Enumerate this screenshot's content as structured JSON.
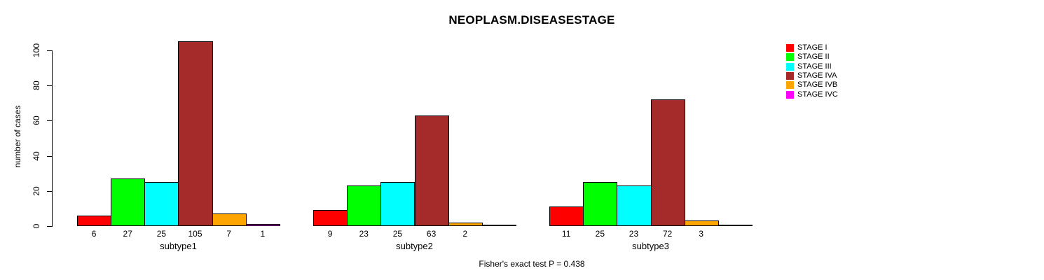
{
  "chart_data": {
    "type": "bar",
    "title": "NEOPLASM.DISEASESTAGE",
    "ylabel": "number of cases",
    "caption": "Fisher's exact test P = 0.438",
    "ylim": [
      0,
      105
    ],
    "yticks": [
      0,
      20,
      40,
      60,
      80,
      100
    ],
    "grid": false,
    "legend_position": "right",
    "categories": [
      "subtype1",
      "subtype2",
      "subtype3"
    ],
    "series": [
      {
        "name": "STAGE I",
        "color": "#FF0000",
        "values": [
          6,
          9,
          11
        ]
      },
      {
        "name": "STAGE II",
        "color": "#00FF00",
        "values": [
          27,
          23,
          25
        ]
      },
      {
        "name": "STAGE III",
        "color": "#00FFFF",
        "values": [
          25,
          25,
          23
        ]
      },
      {
        "name": "STAGE IVA",
        "color": "#A52A2A",
        "values": [
          105,
          63,
          72
        ]
      },
      {
        "name": "STAGE IVB",
        "color": "#FFA500",
        "values": [
          7,
          2,
          3
        ]
      },
      {
        "name": "STAGE IVC",
        "color": "#FF00FF",
        "values": [
          1,
          0,
          0
        ]
      }
    ],
    "notes": {
      "zero_bars_drawn_as_baseline_segment": true,
      "zero_values_unlabeled": true
    }
  }
}
